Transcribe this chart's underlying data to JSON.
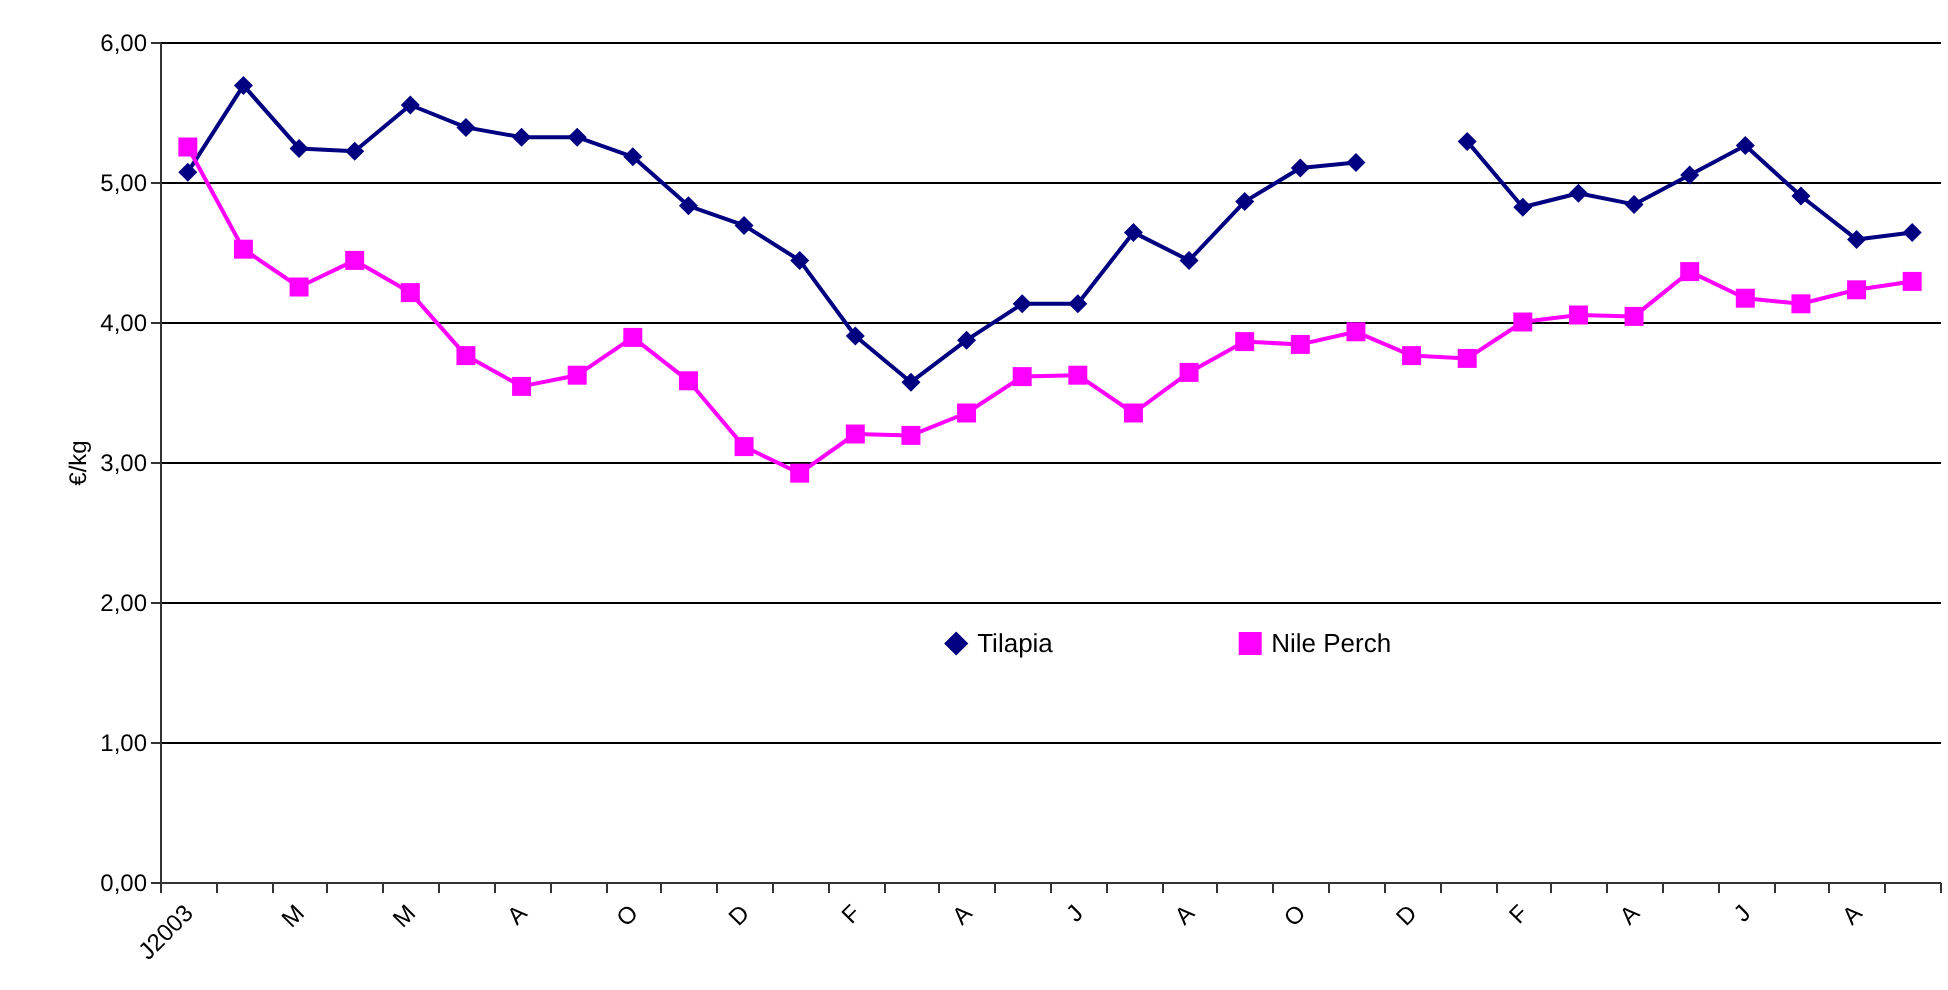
{
  "chart_data": {
    "type": "line",
    "ylabel": "€/kg",
    "categories": [
      "J2003",
      null,
      "M",
      null,
      "M",
      null,
      "A",
      null,
      "O",
      null,
      "D",
      null,
      "F",
      null,
      "A",
      null,
      "J",
      null,
      "A",
      null,
      "O",
      null,
      "D",
      null,
      "F",
      null,
      "A",
      null,
      "J",
      null,
      "A",
      null
    ],
    "series": [
      {
        "name": "Tilapia",
        "color": "#000080",
        "marker": "diamond",
        "values": [
          5.07,
          5.69,
          5.24,
          5.22,
          5.55,
          5.39,
          5.32,
          5.32,
          5.18,
          4.83,
          4.69,
          4.44,
          3.9,
          3.57,
          3.87,
          4.13,
          4.13,
          4.64,
          4.44,
          4.86,
          5.1,
          5.14,
          null,
          5.29,
          4.82,
          4.92,
          4.84,
          5.05,
          5.26,
          4.9,
          4.59,
          4.64
        ]
      },
      {
        "name": "Nile Perch",
        "color": "#ff00ff",
        "marker": "square",
        "values": [
          5.25,
          4.52,
          4.25,
          4.44,
          4.21,
          3.76,
          3.54,
          3.62,
          3.89,
          3.58,
          3.11,
          2.92,
          3.2,
          3.19,
          3.35,
          3.61,
          3.62,
          3.35,
          3.64,
          3.86,
          3.84,
          3.93,
          3.76,
          3.74,
          4.0,
          4.05,
          4.04,
          4.36,
          4.17,
          4.13,
          4.23,
          4.29
        ]
      }
    ],
    "ylim": [
      0,
      6
    ],
    "yticks": [
      {
        "value": 0,
        "label": "0,00"
      },
      {
        "value": 1,
        "label": "1,00"
      },
      {
        "value": 2,
        "label": "2,00"
      },
      {
        "value": 3,
        "label": "3,00"
      },
      {
        "value": 4,
        "label": "4,00"
      },
      {
        "value": 5,
        "label": "5,00"
      },
      {
        "value": 6,
        "label": "6,00"
      }
    ],
    "grid": "y",
    "legend": "center",
    "line_style": "solid"
  }
}
